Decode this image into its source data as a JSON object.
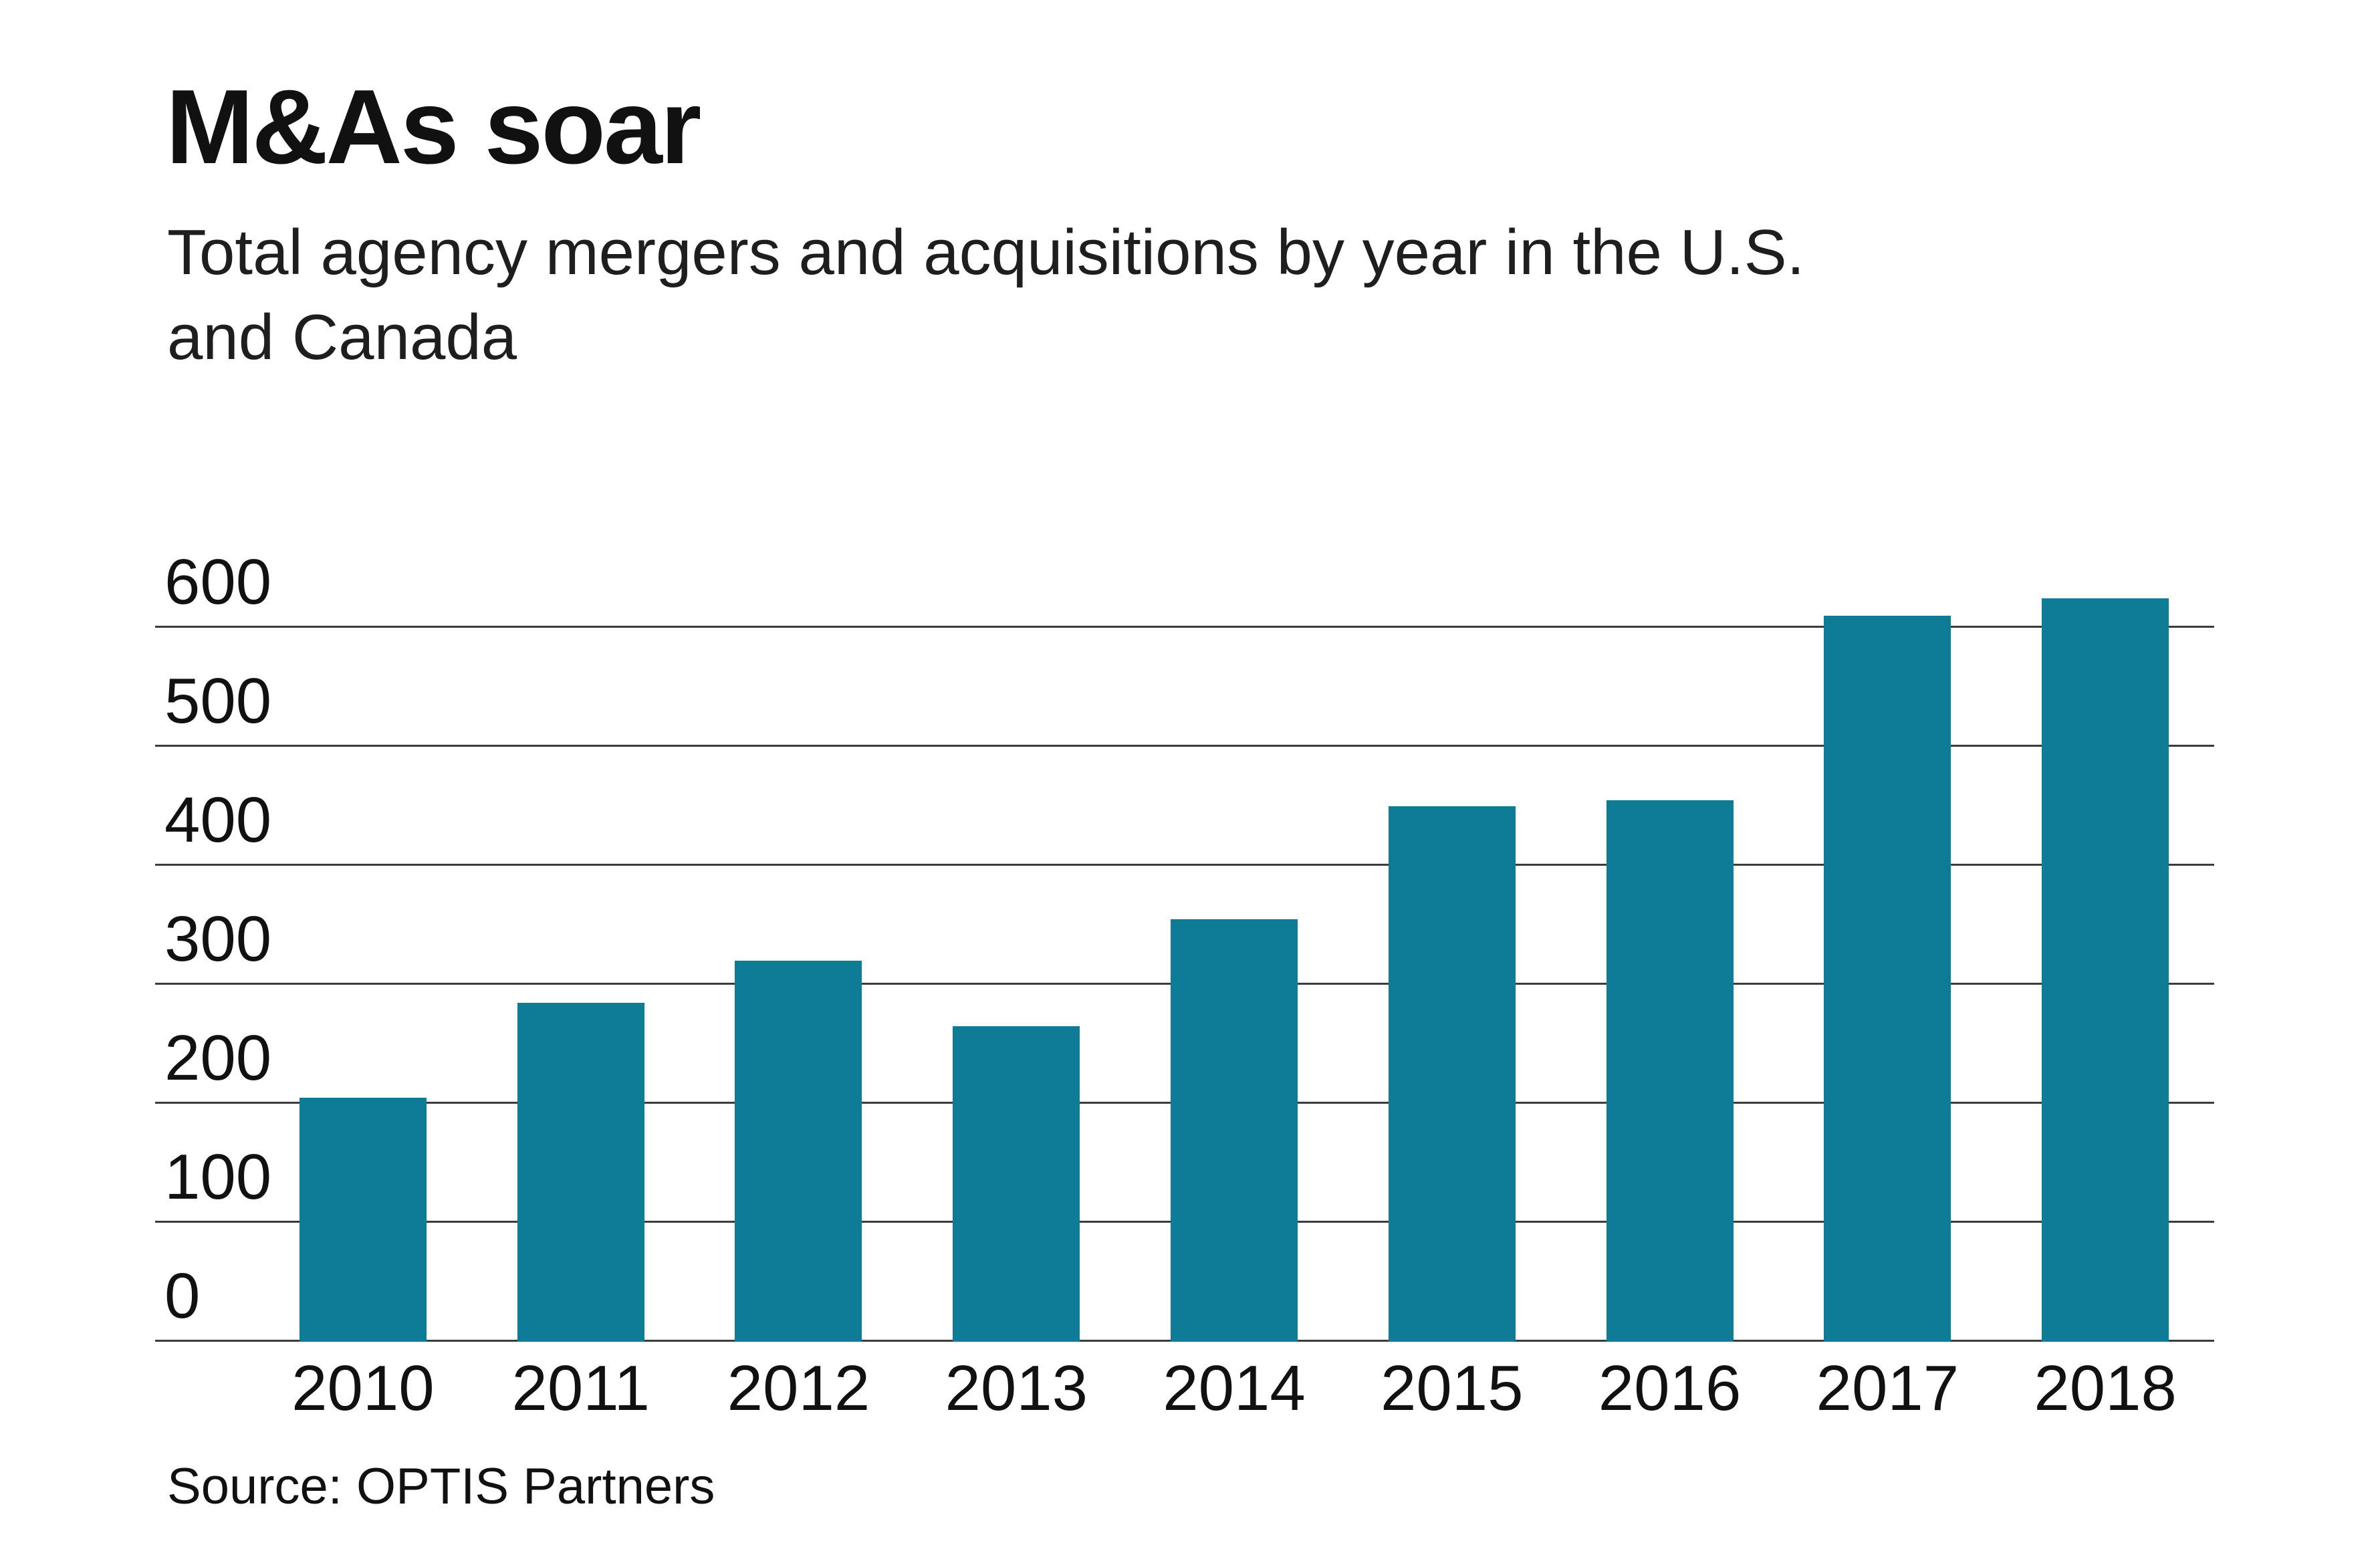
{
  "header": {
    "title": "M&As soar",
    "subtitle_line1": "Total agency mergers and acquisitions by year in the U.S.",
    "subtitle_line2": "and Canada"
  },
  "footer": {
    "source": "Source: OPTIS Partners"
  },
  "colors": {
    "bar": "#0e7c94",
    "text": "#111111",
    "gridline": "#3c3c3c",
    "background": "#ffffff"
  },
  "chart_data": {
    "type": "bar",
    "title": "M&As soar",
    "subtitle": "Total agency mergers and acquisitions by year in the U.S. and Canada",
    "source": "Source: OPTIS Partners",
    "categories": [
      "2010",
      "2011",
      "2012",
      "2013",
      "2014",
      "2015",
      "2016",
      "2017",
      "2018"
    ],
    "values": [
      205,
      285,
      320,
      265,
      355,
      450,
      455,
      610,
      625
    ],
    "xlabel": "",
    "ylabel": "",
    "ylim": [
      0,
      600
    ],
    "yticks": [
      0,
      100,
      200,
      300,
      400,
      500,
      600
    ],
    "grid": true,
    "legend": "none",
    "bar_color": "#0e7c94"
  }
}
